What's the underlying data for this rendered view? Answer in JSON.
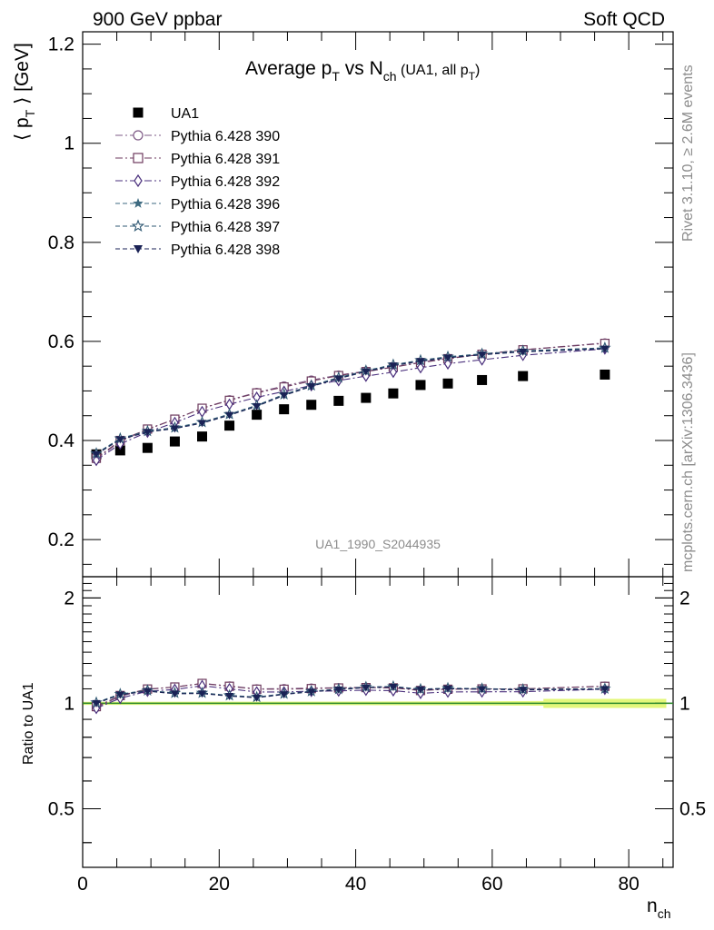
{
  "header": {
    "left": "900 GeV ppbar",
    "right": "Soft QCD"
  },
  "side": {
    "rivet": "Rivet 3.1.10, ≥ 2.6M events",
    "mcplots": "mcplots.cern.ch [arXiv:1306.3436]"
  },
  "watermark": "UA1_1990_S2044935",
  "colors": {
    "ua1": "#000000",
    "p390": "#7e5a86",
    "p391": "#6d3a5e",
    "p392": "#4a2f7c",
    "p396": "#3d6a80",
    "p397": "#2f5873",
    "p398": "#1a2255",
    "band": "#e3f77a",
    "refline": "#2e8b2e"
  },
  "chart_data": [
    {
      "type": "scatter",
      "title": {
        "main": "Average p",
        "main_sub": "T",
        "mid": " vs N",
        "mid_sub": "ch",
        "small": " (UA1, all p",
        "small_sub": "T",
        "small_end": ")"
      },
      "ylabel": {
        "pre": "⟨ p",
        "sub": "T",
        "post": " ⟩ [GeV]"
      },
      "xlim": [
        0,
        86.5
      ],
      "ylim": [
        0.125,
        1.225
      ],
      "yticks": [
        0.2,
        0.4,
        0.6,
        0.8,
        1.0,
        1.2
      ],
      "ytick_labels": [
        "0.2",
        "0.4",
        "0.6",
        "0.8",
        "1",
        "1.2"
      ],
      "x": [
        2,
        5.5,
        9.5,
        13.5,
        17.5,
        21.5,
        25.5,
        29.5,
        33.5,
        37.5,
        41.5,
        45.5,
        49.5,
        53.5,
        58.5,
        64.5,
        76.5
      ],
      "series": [
        {
          "name": "UA1",
          "key": "ua1",
          "marker": "square-filled",
          "line": "none",
          "values": [
            0.372,
            0.38,
            0.385,
            0.398,
            0.408,
            0.43,
            0.452,
            0.463,
            0.472,
            0.48,
            0.486,
            0.495,
            0.512,
            0.515,
            0.522,
            0.53,
            0.533
          ]
        },
        {
          "name": "Pythia 6.428 390",
          "key": "p390",
          "marker": "circle-open",
          "line": "dashdot",
          "values": [
            0.362,
            0.398,
            0.422,
            0.443,
            0.465,
            0.482,
            0.497,
            0.51,
            0.522,
            0.532,
            0.54,
            0.548,
            0.558,
            0.566,
            0.574,
            0.583,
            0.597
          ]
        },
        {
          "name": "Pythia 6.428 391",
          "key": "p391",
          "marker": "square-open",
          "line": "dashdot",
          "values": [
            0.364,
            0.4,
            0.423,
            0.443,
            0.465,
            0.481,
            0.496,
            0.508,
            0.52,
            0.531,
            0.539,
            0.548,
            0.557,
            0.565,
            0.574,
            0.583,
            0.596
          ]
        },
        {
          "name": "Pythia 6.428 392",
          "key": "p392",
          "marker": "diamond-open",
          "line": "dashdot",
          "values": [
            0.36,
            0.393,
            0.417,
            0.436,
            0.458,
            0.473,
            0.487,
            0.499,
            0.511,
            0.521,
            0.53,
            0.538,
            0.547,
            0.555,
            0.563,
            0.572,
            0.585
          ]
        },
        {
          "name": "Pythia 6.428 396",
          "key": "p396",
          "marker": "star-filled",
          "line": "dashed",
          "values": [
            0.373,
            0.403,
            0.418,
            0.425,
            0.436,
            0.452,
            0.47,
            0.492,
            0.51,
            0.526,
            0.54,
            0.552,
            0.561,
            0.568,
            0.574,
            0.58,
            0.586
          ]
        },
        {
          "name": "Pythia 6.428 397",
          "key": "p397",
          "marker": "star-open",
          "line": "dashed",
          "values": [
            0.374,
            0.404,
            0.419,
            0.426,
            0.437,
            0.453,
            0.471,
            0.493,
            0.511,
            0.527,
            0.541,
            0.553,
            0.562,
            0.569,
            0.575,
            0.581,
            0.587
          ]
        },
        {
          "name": "Pythia 6.428 398",
          "key": "p398",
          "marker": "triangle-down-filled",
          "line": "dashed",
          "values": [
            0.372,
            0.402,
            0.417,
            0.424,
            0.435,
            0.451,
            0.469,
            0.491,
            0.509,
            0.525,
            0.539,
            0.551,
            0.56,
            0.567,
            0.573,
            0.579,
            0.585
          ]
        }
      ],
      "legend_position": "top-left"
    },
    {
      "type": "scatter",
      "ylabel": "Ratio to UA1",
      "xlabel": {
        "main": "n",
        "sub": "ch"
      },
      "xlim": [
        0,
        86.5
      ],
      "ylim": [
        0.34,
        2.3
      ],
      "log_y": true,
      "yticks": [
        0.5,
        1,
        2
      ],
      "ytick_labels": [
        "0.5",
        "1",
        "2"
      ],
      "xticks": [
        0,
        20,
        40,
        60,
        80
      ],
      "xtick_labels": [
        "0",
        "20",
        "40",
        "60",
        "80"
      ],
      "reference_line": 1.0,
      "uncertainty_band": [
        [
          0,
          0.01
        ],
        [
          5.5,
          0.01
        ],
        [
          45,
          0.012
        ],
        [
          67.5,
          0.015
        ],
        [
          67.5,
          0.03
        ],
        [
          85.5,
          0.03
        ]
      ]
    }
  ]
}
